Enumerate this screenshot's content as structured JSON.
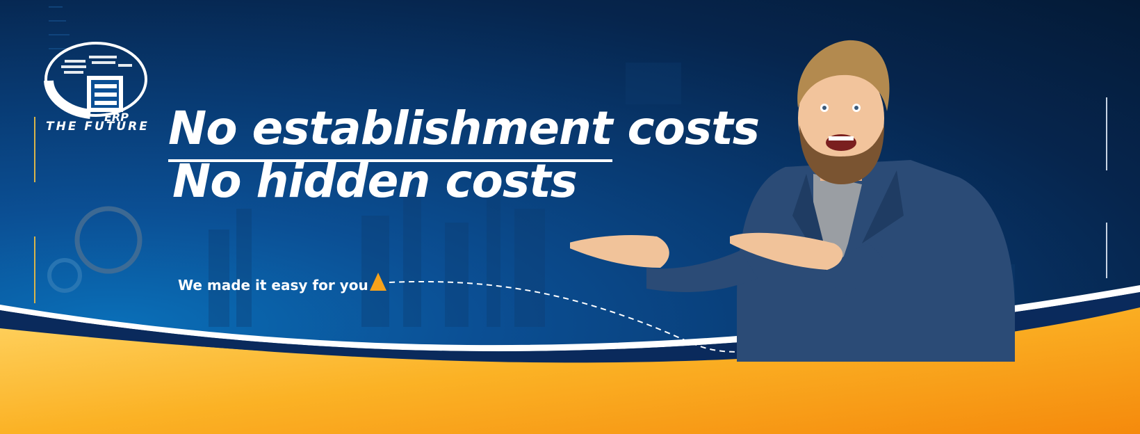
{
  "banner": {
    "logo_text": "THE FUTURE",
    "logo_badge": "ERP",
    "headline_line1_underlined": "No establishment",
    "headline_line1_rest": " costs",
    "headline_line2": "No hidden costs",
    "tagline": "We made it easy for you"
  },
  "colors": {
    "navy": "#06254d",
    "blue": "#0b4f94",
    "orange": "#f59a12",
    "yellow": "#ffd75e",
    "accent_triangle": "#f7a21b",
    "white": "#ffffff"
  },
  "icons": [
    "globe-logo-icon",
    "triangle-marker-icon",
    "decorative-ring-icon"
  ]
}
